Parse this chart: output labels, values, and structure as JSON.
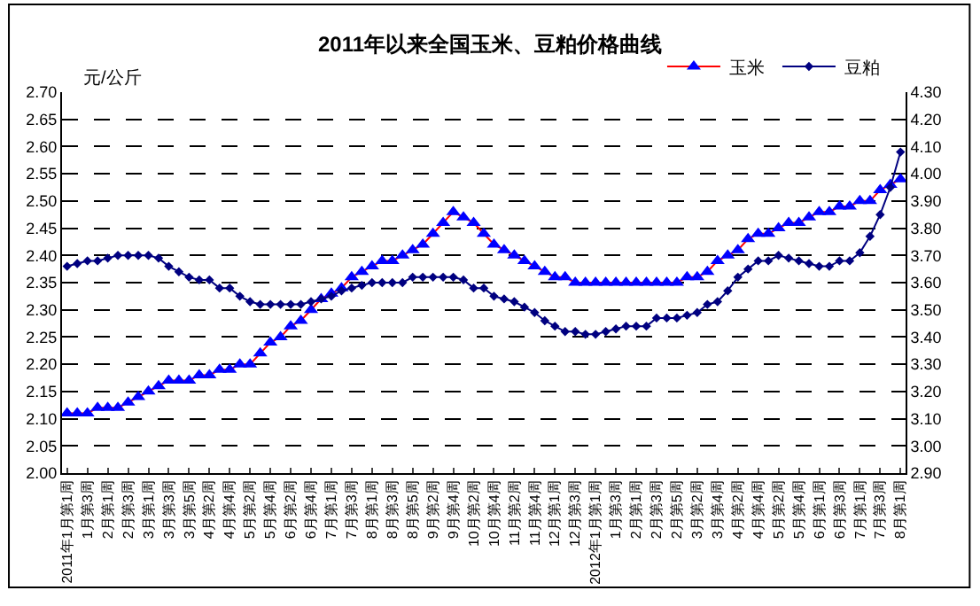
{
  "chart_data": {
    "type": "line",
    "title": "2011年以来全国玉米、豆粕价格曲线",
    "ylabel": "元/公斤",
    "categories": [
      "2011年1月第1周",
      null,
      "1月第3周",
      null,
      "2月第1周",
      null,
      "2月第3周",
      null,
      "3月第1周",
      null,
      "3月第3周",
      null,
      "3月第5周",
      null,
      "4月第2周",
      null,
      "4月第4周",
      null,
      "5月第2周",
      null,
      "5月第4周",
      null,
      "6月第2周",
      null,
      "6月第4周",
      null,
      "7月第1周",
      null,
      "7月第3周",
      null,
      "8月第1周",
      null,
      "8月第3周",
      null,
      "8月第5周",
      null,
      "9月第2周",
      null,
      "9月第4周",
      null,
      "10月第2周",
      null,
      "10月第4周",
      null,
      "11月第2周",
      null,
      "11月第4周",
      null,
      "12月第1周",
      null,
      "12月第3周",
      null,
      "2012年1月第1周",
      null,
      "1月第3周",
      null,
      "2月第1周",
      null,
      "2月第3周",
      null,
      "2月第5周",
      null,
      "3月第2周",
      null,
      "3月第4周",
      null,
      "4月第2周",
      null,
      "4月第4周",
      null,
      "5月第2周",
      null,
      "5月第4周",
      null,
      "6月第1周",
      null,
      "6月第3周",
      null,
      "7月第1周",
      null,
      "7月第3周",
      null,
      "8月第1周"
    ],
    "series": [
      {
        "name": "玉米",
        "color": "#ff0000",
        "colors": [
          "#0000ff",
          "#0000ff",
          "#0000ff",
          "#0000ff",
          "#0000ff",
          "#0000ff",
          "#0000ff",
          "#0000ff",
          "#0000ff",
          "#0000ff",
          "#0000ff",
          "#0000ff",
          "#0000ff",
          "#0000ff",
          "#0000ff",
          "#0000ff",
          "#0000ff",
          "#0000ff",
          "#0000ff",
          "#0000ff",
          "#0000ff",
          "#0000ff",
          "#0000ff",
          "#0000ff",
          "#0000ff",
          "#0000ff",
          "#0000ff",
          "#0000ff",
          "#0000ff",
          "#0000ff",
          "#0000ff",
          "#0000ff",
          "#0000ff",
          "#0000ff",
          "#0000ff",
          "#0000ff",
          "#0000ff",
          "#0000ff",
          "#0000ff",
          "#0000ff",
          "#0000ff",
          "#0000ff",
          "#0000ff",
          "#0000ff",
          "#0000ff",
          "#0000ff",
          "#0000ff",
          "#0000ff",
          "#0000ff",
          "#0000ff",
          "#0000ff",
          "#0000ff",
          "#0000ff",
          "#0000ff",
          "#0000ff",
          "#0000ff",
          "#0000ff",
          "#0000ff",
          "#0000ff",
          "#0000ff",
          "#0000ff",
          "#0000ff",
          "#0000ff",
          "#0000ff",
          "#0000ff",
          "#0000ff",
          "#0000ff",
          "#0000ff",
          "#0000ff",
          "#0000ff",
          "#0000ff",
          "#0000ff",
          "#0000ff",
          "#0000ff",
          "#0000ff",
          "#0000ff",
          "#0000ff",
          "#0000ff",
          "#0000ff",
          "#0000ff",
          "#0000ff",
          "#0000ff",
          "#0000ff"
        ],
        "marker": "triangle",
        "values": [
          2.11,
          2.11,
          2.11,
          2.12,
          2.12,
          2.12,
          2.13,
          2.14,
          2.15,
          2.16,
          2.17,
          2.17,
          2.17,
          2.18,
          2.18,
          2.19,
          2.19,
          2.2,
          2.2,
          2.22,
          2.24,
          2.25,
          2.27,
          2.28,
          2.3,
          2.32,
          2.33,
          2.34,
          2.36,
          2.37,
          2.38,
          2.39,
          2.39,
          2.4,
          2.41,
          2.42,
          2.44,
          2.46,
          2.48,
          2.47,
          2.46,
          2.44,
          2.42,
          2.41,
          2.4,
          2.39,
          2.38,
          2.37,
          2.36,
          2.36,
          2.35,
          2.35,
          2.35,
          2.35,
          2.35,
          2.35,
          2.35,
          2.35,
          2.35,
          2.35,
          2.35,
          2.36,
          2.36,
          2.37,
          2.39,
          2.4,
          2.41,
          2.43,
          2.44,
          2.44,
          2.45,
          2.46,
          2.46,
          2.47,
          2.48,
          2.48,
          2.49,
          2.49,
          2.5,
          2.5,
          2.52,
          2.53,
          2.54
        ]
      },
      {
        "name": "豆粕",
        "color": "#000080",
        "marker": "diamond",
        "axis": "y2",
        "values": [
          3.66,
          3.67,
          3.68,
          3.68,
          3.69,
          3.7,
          3.7,
          3.7,
          3.7,
          3.69,
          3.66,
          3.64,
          3.62,
          3.61,
          3.61,
          3.58,
          3.58,
          3.55,
          3.53,
          3.52,
          3.52,
          3.52,
          3.52,
          3.52,
          3.53,
          3.54,
          3.55,
          3.57,
          3.58,
          3.59,
          3.6,
          3.6,
          3.6,
          3.6,
          3.62,
          3.62,
          3.62,
          3.62,
          3.62,
          3.61,
          3.58,
          3.58,
          3.55,
          3.54,
          3.53,
          3.51,
          3.49,
          3.46,
          3.44,
          3.42,
          3.42,
          3.41,
          3.41,
          3.42,
          3.43,
          3.44,
          3.44,
          3.44,
          3.47,
          3.47,
          3.47,
          3.48,
          3.49,
          3.52,
          3.53,
          3.57,
          3.62,
          3.65,
          3.68,
          3.68,
          3.7,
          3.69,
          3.68,
          3.67,
          3.66,
          3.66,
          3.68,
          3.68,
          3.71,
          3.77,
          3.85,
          3.95,
          4.08
        ]
      }
    ],
    "ylim": [
      2.0,
      2.7
    ],
    "yticks": [
      {
        "value": 2.0,
        "label": "2.00"
      },
      {
        "value": 2.05,
        "label": "2.05"
      },
      {
        "value": 2.1,
        "label": "2.10"
      },
      {
        "value": 2.15,
        "label": "2.15"
      },
      {
        "value": 2.2,
        "label": "2.20"
      },
      {
        "value": 2.25,
        "label": "2.25"
      },
      {
        "value": 2.3,
        "label": "2.30"
      },
      {
        "value": 2.35,
        "label": "2.35"
      },
      {
        "value": 2.4,
        "label": "2.40"
      },
      {
        "value": 2.45,
        "label": "2.45"
      },
      {
        "value": 2.5,
        "label": "2.50"
      },
      {
        "value": 2.55,
        "label": "2.55"
      },
      {
        "value": 2.6,
        "label": "2.60"
      },
      {
        "value": 2.65,
        "label": "2.65"
      },
      {
        "value": 2.7,
        "label": "2.70"
      }
    ],
    "y2lim": [
      2.9,
      4.3
    ],
    "y2ticks": [
      {
        "value": 2.9,
        "label": "2.90"
      },
      {
        "value": 3.0,
        "label": "3.00"
      },
      {
        "value": 3.1,
        "label": "3.10"
      },
      {
        "value": 3.2,
        "label": "3.20"
      },
      {
        "value": 3.3,
        "label": "3.30"
      },
      {
        "value": 3.4,
        "label": "3.40"
      },
      {
        "value": 3.5,
        "label": "3.50"
      },
      {
        "value": 3.6,
        "label": "3.60"
      },
      {
        "value": 3.7,
        "label": "3.70"
      },
      {
        "value": 3.8,
        "label": "3.80"
      },
      {
        "value": 3.9,
        "label": "3.90"
      },
      {
        "value": 4.0,
        "label": "4.00"
      },
      {
        "value": 4.1,
        "label": "4.10"
      },
      {
        "value": 4.2,
        "label": "4.20"
      },
      {
        "value": 4.3,
        "label": "4.30"
      }
    ],
    "grid": "y",
    "legend": "top right",
    "line_style": "solid"
  }
}
